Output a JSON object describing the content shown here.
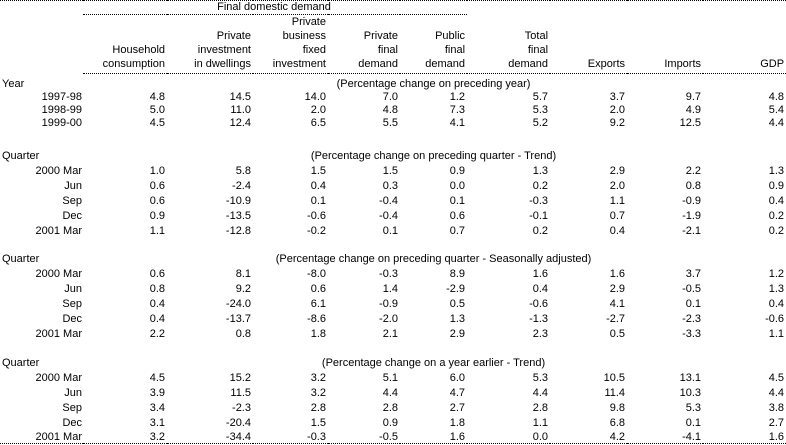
{
  "table": {
    "group_header": "Final domestic demand",
    "columns": [
      {
        "id": "household-consumption",
        "label": "Household\nconsumption"
      },
      {
        "id": "private-investment-in-dwellings",
        "label": "Private\ninvestment\nin dwellings"
      },
      {
        "id": "private-business-fixed-investment",
        "label": "Private\nbusiness\nfixed\ninvestment"
      },
      {
        "id": "private-final-demand",
        "label": "Private\nfinal\ndemand"
      },
      {
        "id": "public-final-demand",
        "label": "Public\nfinal\ndemand"
      },
      {
        "id": "total-final-demand",
        "label": "Total\nfinal\ndemand"
      },
      {
        "id": "exports",
        "label": "Exports"
      },
      {
        "id": "imports",
        "label": "Imports"
      },
      {
        "id": "gdp",
        "label": "GDP"
      }
    ],
    "sections": [
      {
        "label": "Year",
        "caption": "(Percentage change on preceding year)",
        "rows": [
          {
            "label": "1997-98",
            "values": [
              "4.8",
              "14.5",
              "14.0",
              "7.0",
              "1.2",
              "5.7",
              "3.7",
              "9.7",
              "4.8"
            ]
          },
          {
            "label": "1998-99",
            "values": [
              "5.0",
              "11.0",
              "2.0",
              "4.8",
              "7.3",
              "5.3",
              "2.0",
              "4.9",
              "5.4"
            ]
          },
          {
            "label": "1999-00",
            "values": [
              "4.5",
              "12.4",
              "6.5",
              "5.5",
              "4.1",
              "5.2",
              "9.2",
              "12.5",
              "4.4"
            ]
          }
        ]
      },
      {
        "label": "Quarter",
        "caption": "(Percentage change on preceding quarter - Trend)",
        "rows": [
          {
            "label": "2000 Mar",
            "values": [
              "1.0",
              "5.8",
              "1.5",
              "1.5",
              "0.9",
              "1.3",
              "2.9",
              "2.2",
              "1.3"
            ]
          },
          {
            "label": "Jun",
            "values": [
              "0.6",
              "-2.4",
              "0.4",
              "0.3",
              "0.0",
              "0.2",
              "2.0",
              "0.8",
              "0.9"
            ]
          },
          {
            "label": "Sep",
            "values": [
              "0.6",
              "-10.9",
              "0.1",
              "-0.4",
              "0.1",
              "-0.3",
              "1.1",
              "-0.9",
              "0.4"
            ]
          },
          {
            "label": "Dec",
            "values": [
              "0.9",
              "-13.5",
              "-0.6",
              "-0.4",
              "0.6",
              "-0.1",
              "0.7",
              "-1.9",
              "0.2"
            ]
          },
          {
            "label": "2001 Mar",
            "values": [
              "1.1",
              "-12.8",
              "-0.2",
              "0.1",
              "0.7",
              "0.2",
              "0.4",
              "-2.1",
              "0.2"
            ]
          }
        ]
      },
      {
        "label": "Quarter",
        "caption": "(Percentage change on preceding quarter - Seasonally adjusted)",
        "rows": [
          {
            "label": "2000 Mar",
            "values": [
              "0.6",
              "8.1",
              "-8.0",
              "-0.3",
              "8.9",
              "1.6",
              "1.6",
              "3.7",
              "1.2"
            ]
          },
          {
            "label": "Jun",
            "values": [
              "0.8",
              "9.2",
              "0.6",
              "1.4",
              "-2.9",
              "0.4",
              "2.9",
              "-0.5",
              "1.3"
            ]
          },
          {
            "label": "Sep",
            "values": [
              "0.4",
              "-24.0",
              "6.1",
              "-0.9",
              "0.5",
              "-0.6",
              "4.1",
              "0.1",
              "0.4"
            ]
          },
          {
            "label": "Dec",
            "values": [
              "0.4",
              "-13.7",
              "-8.6",
              "-2.0",
              "1.3",
              "-1.3",
              "-2.7",
              "-2.3",
              "-0.6"
            ]
          },
          {
            "label": "2001 Mar",
            "values": [
              "2.2",
              "0.8",
              "1.8",
              "2.1",
              "2.9",
              "2.3",
              "0.5",
              "-3.3",
              "1.1"
            ]
          }
        ]
      },
      {
        "label": "Quarter",
        "caption": "(Percentage change on a year earlier - Trend)",
        "rows": [
          {
            "label": "2000 Mar",
            "values": [
              "4.5",
              "15.2",
              "3.2",
              "5.1",
              "6.0",
              "5.3",
              "10.5",
              "13.1",
              "4.5"
            ]
          },
          {
            "label": "Jun",
            "values": [
              "3.9",
              "11.5",
              "3.2",
              "4.4",
              "4.7",
              "4.4",
              "11.4",
              "10.3",
              "4.4"
            ]
          },
          {
            "label": "Sep",
            "values": [
              "3.4",
              "-2.3",
              "2.8",
              "2.8",
              "2.7",
              "2.8",
              "9.8",
              "5.3",
              "3.8"
            ]
          },
          {
            "label": "Dec",
            "values": [
              "3.1",
              "-20.4",
              "1.5",
              "0.9",
              "1.8",
              "1.1",
              "6.8",
              "0.1",
              "2.7"
            ]
          },
          {
            "label": "2001 Mar",
            "values": [
              "3.2",
              "-34.4",
              "-0.3",
              "-0.5",
              "1.6",
              "0.0",
              "4.2",
              "-4.1",
              "1.6"
            ]
          }
        ]
      }
    ]
  },
  "colors": {
    "text": "#000000",
    "background": "#ffffff",
    "rule": "#000000"
  }
}
